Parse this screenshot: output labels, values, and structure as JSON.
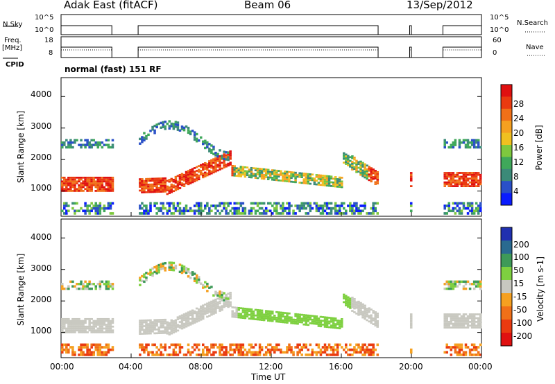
{
  "header": {
    "title": "Adak East (fitACF)",
    "beam": "Beam 06",
    "date": "13/Sep/2012"
  },
  "status_panel": {
    "nsky_label": "N.Sky",
    "nsky_ticks": [
      "10^5",
      "10^0"
    ],
    "nsearch_label": "N.Search",
    "nsearch_ticks": [
      "10^5",
      "10^0"
    ],
    "freq_label": "Freq.",
    "freq_unit": "[MHz]",
    "freq_ticks": [
      "18",
      "8"
    ],
    "nave_label": "Nave",
    "nave_ticks": [
      "60",
      "0"
    ],
    "cpid_label": "CPID",
    "cpid_text": "normal (fast) 151 RF"
  },
  "chart_data": [
    {
      "type": "heatmap",
      "panel": "power",
      "ylabel": "Slant Range [km]",
      "ylim": [
        200,
        4600
      ],
      "yticks": [
        "1000",
        "2000",
        "3000",
        "4000"
      ],
      "colorbar_label": "Power [dB]",
      "colorbar_ticks": [
        "4",
        "8",
        "12",
        "16",
        "20",
        "24",
        "28"
      ],
      "colorbar_colors": [
        "#0a1cff",
        "#2a50c8",
        "#3b8a78",
        "#3fa85a",
        "#7ec83e",
        "#f0c020",
        "#f5a020",
        "#f07018",
        "#ea3a10",
        "#e01010"
      ],
      "data_intervals_ut": [
        [
          0.0,
          2.9
        ],
        [
          4.4,
          18.1
        ],
        [
          19.9,
          20.0
        ],
        [
          21.8,
          24.0
        ]
      ]
    },
    {
      "type": "heatmap",
      "panel": "velocity",
      "ylabel": "Slant Range [km]",
      "ylim": [
        200,
        4600
      ],
      "yticks": [
        "1000",
        "2000",
        "3000",
        "4000"
      ],
      "colorbar_label": "Velocity [m s-1]",
      "colorbar_ticks": [
        "200",
        "100",
        "50",
        "15",
        "-15",
        "-50",
        "-100",
        "-200"
      ],
      "colorbar_colors": [
        "#2030b0",
        "#2a6a90",
        "#3e9a58",
        "#7ed040",
        "#c8c8c0",
        "#f5a020",
        "#f07018",
        "#ea3a10",
        "#e01010"
      ],
      "data_intervals_ut": [
        [
          0.0,
          2.9
        ],
        [
          4.4,
          18.1
        ],
        [
          19.9,
          20.0
        ],
        [
          21.8,
          24.0
        ]
      ]
    }
  ],
  "x_axis": {
    "xlabel": "Time UT",
    "xlim": [
      0,
      24
    ],
    "ticks": [
      "00:00",
      "04:00",
      "08:00",
      "12:00",
      "16:00",
      "20:00",
      "00:00"
    ]
  },
  "colors": {
    "power_main_band": "#e01010",
    "velocity_main_band": "#c8c8c0",
    "velocity_negative": "#7ed040"
  }
}
